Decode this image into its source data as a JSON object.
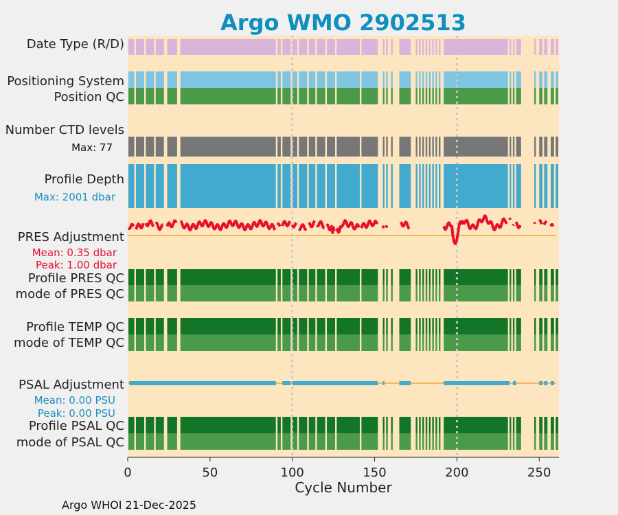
{
  "chart_data": {
    "type": "timeline",
    "title": "Argo WMO 2902513",
    "xlabel": "Cycle Number",
    "xlim": [
      0,
      262
    ],
    "xticks": [
      0,
      50,
      100,
      150,
      200,
      250
    ],
    "reference_lines_x": [
      100,
      200
    ],
    "gaps": [
      [
        4,
        5
      ],
      [
        10,
        11
      ],
      [
        16,
        17
      ],
      [
        22,
        24
      ],
      [
        30,
        32
      ],
      [
        90,
        91
      ],
      [
        93,
        94
      ],
      [
        99,
        100
      ],
      [
        103,
        104
      ],
      [
        109,
        110
      ],
      [
        114,
        115
      ],
      [
        120,
        121
      ],
      [
        126,
        127
      ],
      [
        141,
        142
      ],
      [
        152,
        155
      ],
      [
        156,
        157
      ],
      [
        158,
        160
      ],
      [
        161,
        165
      ],
      [
        172,
        175
      ],
      [
        176,
        177
      ],
      [
        178,
        179
      ],
      [
        180,
        181
      ],
      [
        182,
        183
      ],
      [
        184,
        185
      ],
      [
        186,
        187
      ],
      [
        188,
        189
      ],
      [
        190,
        192
      ],
      [
        231,
        232
      ],
      [
        233,
        234
      ],
      [
        235,
        236
      ],
      [
        239,
        247
      ],
      [
        248,
        250
      ],
      [
        252,
        253
      ],
      [
        255,
        257
      ],
      [
        259,
        260
      ]
    ],
    "rows": [
      {
        "label": "Date Type (R/D)",
        "color": "#dab5db"
      },
      {
        "label": "Positioning System",
        "color": "#7fc4e0"
      },
      {
        "label": "Position QC",
        "color": "#4a9a4a"
      },
      {
        "label": "Number CTD levels",
        "note": "Max: 77",
        "color": "#777777"
      },
      {
        "label": "Profile Depth",
        "note": "Max: 2001 dbar",
        "color": "#42a9cf"
      },
      {
        "label": "PRES Adjustment",
        "mean": "Mean: 0.35 dbar",
        "peak": "Peak: 1.00 dbar",
        "color": "#e8102f"
      },
      {
        "label": "Profile PRES QC",
        "color": "#137527"
      },
      {
        "label": "mode of PRES QC",
        "color": "#4a9a4a"
      },
      {
        "label": "Profile TEMP QC",
        "color": "#137527"
      },
      {
        "label": "mode of TEMP QC",
        "color": "#4a9a4a"
      },
      {
        "label": "PSAL Adjustment",
        "mean": "Mean: 0.00 PSU",
        "peak": "Peak: 0.00 PSU",
        "color": "#42a9cf"
      },
      {
        "label": "Profile PSAL QC",
        "color": "#137527"
      },
      {
        "label": "mode of PSAL QC",
        "color": "#4a9a4a"
      }
    ],
    "colors": {
      "background": "#fde6bf",
      "title": "#0f8fbf",
      "label": "#222222",
      "zero_line": "#f0a830",
      "dotted_line": "#c8c8c8"
    }
  },
  "footer": "Argo WHOI 21-Dec-2025"
}
